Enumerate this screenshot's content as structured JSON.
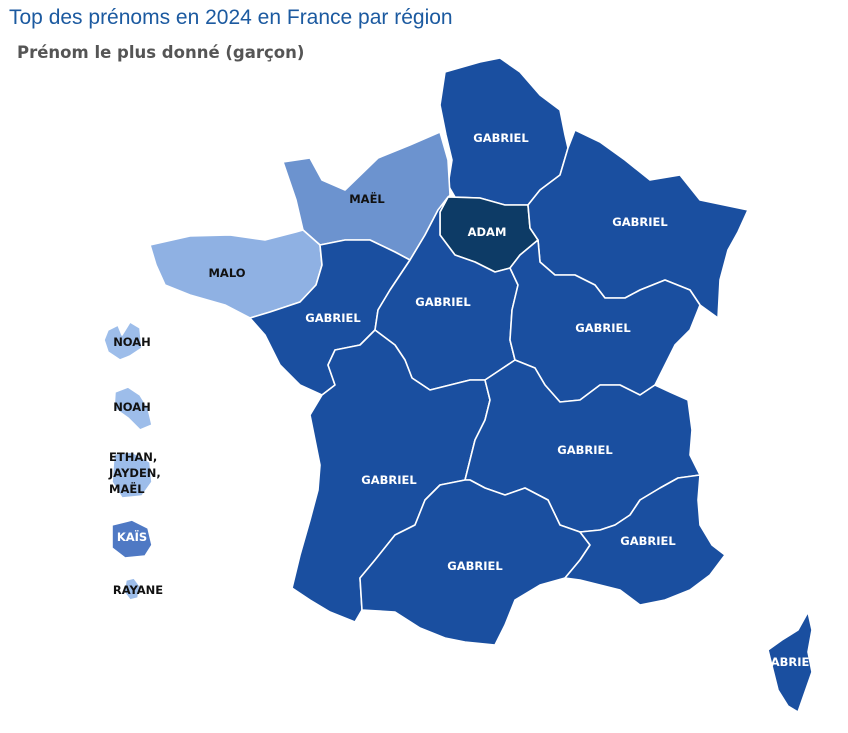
{
  "title": "Top des prénoms en 2024 en France par région",
  "subtitle": "Prénom le plus donné (garçon)",
  "colors": {
    "gabriel": "#1a4fa0",
    "adam": "#0d3b66",
    "mael": "#6c93cf",
    "malo": "#8fb1e3",
    "overseas_light": "#9dbdea",
    "kais": "#4f79c4",
    "border": "#ffffff"
  },
  "regions": [
    {
      "name": "Hauts-de-France",
      "label": "GABRIEL"
    },
    {
      "name": "Normandie",
      "label": "MAËL"
    },
    {
      "name": "Île-de-France",
      "label": "ADAM"
    },
    {
      "name": "Grand Est",
      "label": "GABRIEL"
    },
    {
      "name": "Bretagne",
      "label": "MALO"
    },
    {
      "name": "Pays de la Loire",
      "label": "GABRIEL"
    },
    {
      "name": "Centre-Val de Loire",
      "label": "GABRIEL"
    },
    {
      "name": "Bourgogne-Franche-Comté",
      "label": "GABRIEL"
    },
    {
      "name": "Nouvelle-Aquitaine",
      "label": "GABRIEL"
    },
    {
      "name": "Auvergne-Rhône-Alpes",
      "label": "GABRIEL"
    },
    {
      "name": "Occitanie",
      "label": "GABRIEL"
    },
    {
      "name": "Provence-Alpes-Côte d'Azur",
      "label": "GABRIEL"
    },
    {
      "name": "Corse",
      "label": "GABRIEL"
    }
  ],
  "overseas": [
    {
      "name": "Guadeloupe",
      "label_lines": [
        "NOAH"
      ]
    },
    {
      "name": "Martinique",
      "label_lines": [
        "NOAH"
      ]
    },
    {
      "name": "Guyane",
      "label_lines": [
        "ETHAN,",
        "JAYDEN,",
        "MAËL"
      ]
    },
    {
      "name": "La Réunion",
      "label_lines": [
        "KAÏS"
      ]
    },
    {
      "name": "Mayotte",
      "label_lines": [
        "RAYANE"
      ]
    }
  ]
}
